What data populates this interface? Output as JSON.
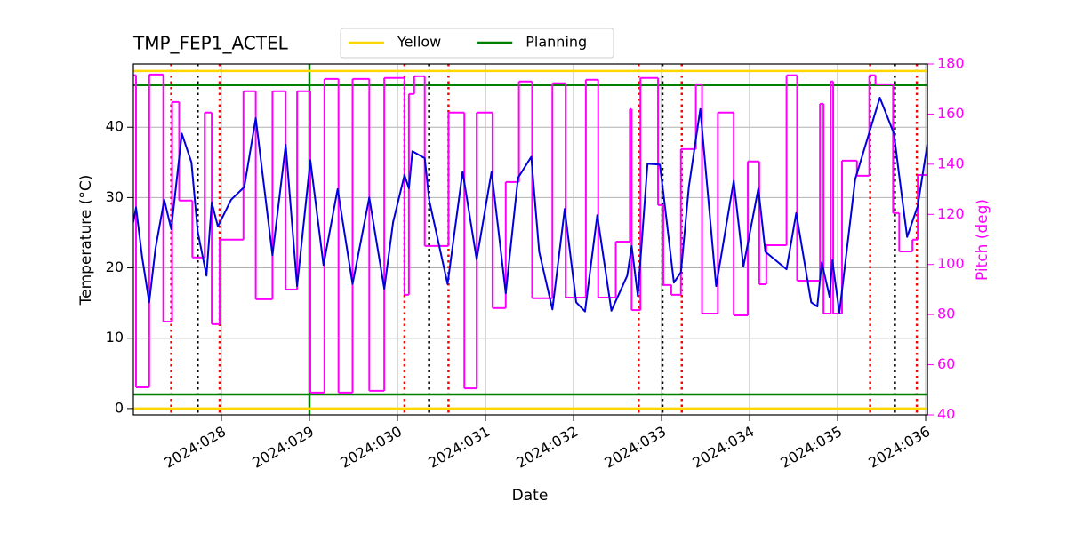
{
  "chart_data": {
    "type": "line",
    "title": "TMP_FEP1_ACTEL",
    "xlabel": "Date",
    "ylabel": "Temperature (°C)",
    "y2label": "Pitch (deg)",
    "y2color": "#ff00ff",
    "grid": true,
    "legend": "upper center",
    "xlim": [
      27.0,
      36.02
    ],
    "xticks": [
      {
        "value": 28,
        "label": "2024:028"
      },
      {
        "value": 29,
        "label": "2024:029"
      },
      {
        "value": 30,
        "label": "2024:030"
      },
      {
        "value": 31,
        "label": "2024:031"
      },
      {
        "value": 32,
        "label": "2024:032"
      },
      {
        "value": 33,
        "label": "2024:033"
      },
      {
        "value": 34,
        "label": "2024:034"
      },
      {
        "value": 35,
        "label": "2024:035"
      },
      {
        "value": 36,
        "label": "2024:036"
      }
    ],
    "ylim": [
      -0.9,
      49.0
    ],
    "yticks": [
      0,
      10,
      20,
      30,
      40
    ],
    "y2lim": [
      40,
      180
    ],
    "y2ticks": [
      40,
      60,
      80,
      100,
      120,
      140,
      160,
      180
    ],
    "limits": [
      {
        "name": "Yellow",
        "color": "#ffd700",
        "values": [
          0,
          48
        ]
      },
      {
        "name": "Planning",
        "color": "#008000",
        "values": [
          2,
          46
        ]
      }
    ],
    "vlines": [
      {
        "color": "#008000",
        "linestyle": "solid",
        "x": [
          29.0
        ]
      },
      {
        "color": "#000000",
        "linestyle": "dotted",
        "x": [
          27.73,
          30.36,
          33.01,
          35.65
        ]
      },
      {
        "color": "#ff0000",
        "linestyle": "dotted",
        "x": [
          27.43,
          27.98,
          30.08,
          30.58,
          32.74,
          33.23,
          35.37,
          35.9
        ]
      }
    ],
    "series": [
      {
        "color": "#0000dd",
        "step": false,
        "x": [
          27.0,
          27.03,
          27.1,
          27.18,
          27.25,
          27.35,
          27.43,
          27.55,
          27.66,
          27.73,
          27.83,
          27.89,
          27.96,
          28.11,
          28.26,
          28.39,
          28.58,
          28.73,
          28.86,
          29.01,
          29.16,
          29.32,
          29.49,
          29.68,
          29.85,
          29.95,
          30.08,
          30.13,
          30.17,
          30.31,
          30.36,
          30.57,
          30.74,
          30.9,
          31.07,
          31.23,
          31.37,
          31.52,
          31.61,
          31.76,
          31.9,
          32.03,
          32.13,
          32.27,
          32.43,
          32.61,
          32.66,
          32.73,
          32.84,
          32.98,
          33.02,
          33.14,
          33.22,
          33.31,
          33.44,
          33.62,
          33.82,
          33.93,
          34.1,
          34.18,
          34.42,
          34.53,
          34.7,
          34.77,
          34.82,
          34.91,
          34.94,
          35.02,
          35.2,
          35.48,
          35.64,
          35.69,
          35.79,
          35.91,
          36.02
        ],
        "values": [
          26.5,
          28.6,
          21.5,
          15.1,
          22.7,
          29.7,
          25.5,
          39.1,
          35,
          25.2,
          18.9,
          29.3,
          25.9,
          29.7,
          31.5,
          41.3,
          21.8,
          37.5,
          17.4,
          35.3,
          20.4,
          31.2,
          17.7,
          30,
          17,
          26.5,
          33.2,
          31.3,
          36.6,
          35.6,
          29.7,
          17.7,
          33.7,
          21.2,
          33.7,
          16.4,
          32.8,
          35.8,
          22.3,
          14.1,
          28.4,
          15.1,
          13.8,
          27.5,
          13.9,
          18.9,
          23.1,
          16,
          34.8,
          34.7,
          30.7,
          17.9,
          19.4,
          31.5,
          42.6,
          17.4,
          32.4,
          20.2,
          31.3,
          22.3,
          19.8,
          27.8,
          15.1,
          14.5,
          20.8,
          15.8,
          21.1,
          13.6,
          32.6,
          44.2,
          39.1,
          34.1,
          24.4,
          28.8,
          37.6
        ]
      },
      {
        "color": "#ff00ff",
        "axis": "y2",
        "step": true,
        "x": [
          27.0,
          27.03,
          27.18,
          27.34,
          27.44,
          27.52,
          27.67,
          27.81,
          27.89,
          27.98,
          28.25,
          28.39,
          28.58,
          28.73,
          28.86,
          29.01,
          29.17,
          29.33,
          29.49,
          29.68,
          29.85,
          30.08,
          30.13,
          30.19,
          30.31,
          30.58,
          30.76,
          30.9,
          31.08,
          31.23,
          31.38,
          31.53,
          31.76,
          31.91,
          32.14,
          32.28,
          32.48,
          32.64,
          32.66,
          32.76,
          32.96,
          33.02,
          33.11,
          33.22,
          33.39,
          33.46,
          33.64,
          33.82,
          33.98,
          34.11,
          34.19,
          34.42,
          34.54,
          34.8,
          34.84,
          34.92,
          34.95,
          35.05,
          35.22,
          35.36,
          35.43,
          35.63,
          35.7,
          35.85,
          35.91
        ],
        "values": [
          175.5,
          51,
          175.8,
          77.2,
          164.8,
          125.5,
          102.8,
          160.6,
          76.2,
          109.9,
          169.1,
          86.1,
          169.1,
          90,
          169.1,
          48.9,
          174,
          48.9,
          174,
          49.6,
          174.4,
          87.9,
          168,
          175.1,
          107.4,
          160.6,
          50.6,
          160.6,
          82.6,
          132.9,
          173,
          86.5,
          172.3,
          86.8,
          173.7,
          86.8,
          109.1,
          162,
          81.8,
          174.4,
          123.7,
          91.8,
          87.9,
          146,
          171.9,
          80.4,
          160.6,
          79.7,
          141.1,
          92.1,
          107.7,
          175.5,
          93.5,
          164.1,
          80.4,
          173,
          80.4,
          141.4,
          135.4,
          175.5,
          171.9,
          120.5,
          105.2,
          109.9,
          135.7
        ]
      }
    ]
  }
}
